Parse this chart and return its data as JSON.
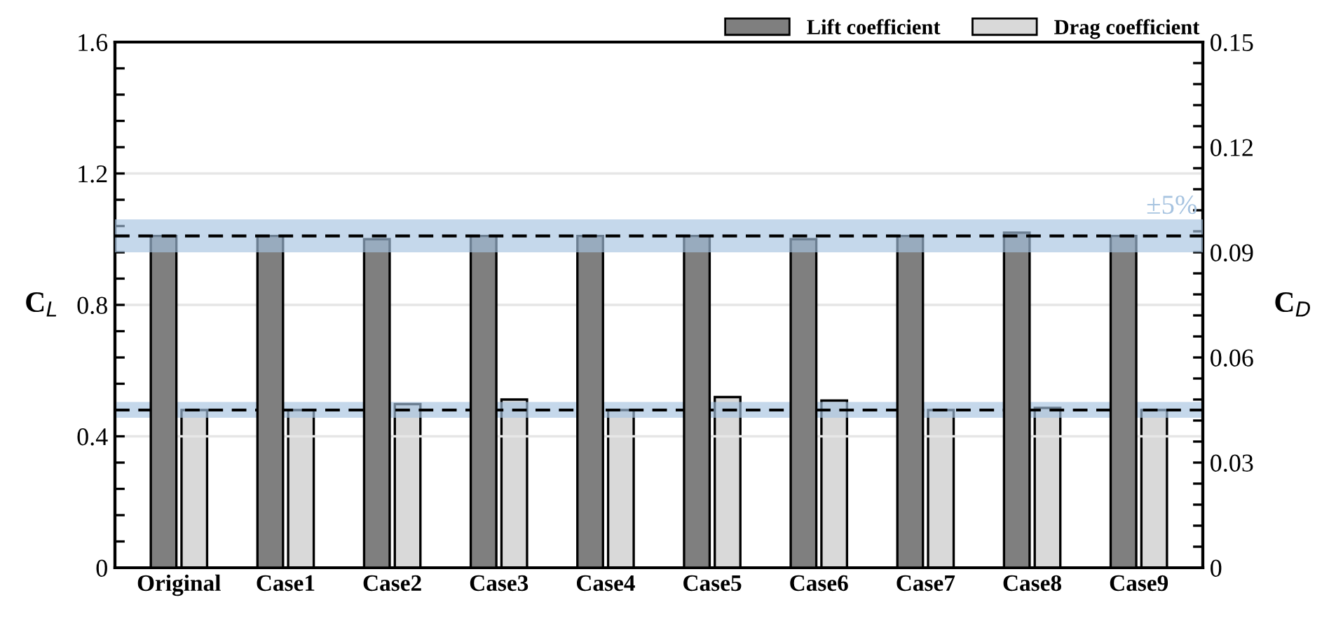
{
  "chart_data": {
    "type": "bar",
    "categories": [
      "Original",
      "Case1",
      "Case2",
      "Case3",
      "Case4",
      "Case5",
      "Case6",
      "Case7",
      "Case8",
      "Case9"
    ],
    "series": [
      {
        "name": "Lift coefficient",
        "color": "#7f7f7f",
        "values": [
          1.01,
          1.01,
          1.0,
          1.01,
          1.01,
          1.01,
          1.0,
          1.01,
          1.02,
          1.01
        ]
      },
      {
        "name": "Drag coefficient",
        "color": "#d9d9d9",
        "axis": "y2",
        "values": [
          0.045,
          0.045,
          0.0467,
          0.048,
          0.045,
          0.0487,
          0.0477,
          0.045,
          0.0456,
          0.045
        ]
      }
    ],
    "ylabel": "C$_{L}$",
    "y2label": "C$_{D}$",
    "ylim": [
      0,
      1.6
    ],
    "yticks": [
      0,
      {
        "value": 0.08,
        "label": null
      },
      {
        "value": 0.16,
        "label": null
      },
      {
        "value": 0.24,
        "label": null
      },
      {
        "value": 0.32,
        "label": null
      },
      0.4,
      {
        "value": 0.48,
        "label": null
      },
      {
        "value": 0.56,
        "label": null
      },
      {
        "value": 0.64,
        "label": null
      },
      {
        "value": 0.72,
        "label": null
      },
      0.8,
      {
        "value": 0.88,
        "label": null
      },
      {
        "value": 0.96,
        "label": null
      },
      {
        "value": 1.04,
        "label": null
      },
      {
        "value": 1.12,
        "label": null
      },
      1.2,
      {
        "value": 1.28,
        "label": null
      },
      {
        "value": 1.36,
        "label": null
      },
      {
        "value": 1.44,
        "label": null
      },
      {
        "value": 1.52,
        "label": null
      },
      1.6
    ],
    "y2lim": [
      0,
      0.15
    ],
    "y2ticks": [
      0,
      {
        "value": 0.006,
        "label": null
      },
      {
        "value": 0.012,
        "label": null
      },
      {
        "value": 0.018,
        "label": null
      },
      {
        "value": 0.024,
        "label": null
      },
      0.03,
      {
        "value": 0.036,
        "label": null
      },
      {
        "value": 0.042,
        "label": null
      },
      {
        "value": 0.048,
        "label": null
      },
      {
        "value": 0.054,
        "label": null
      },
      0.06,
      {
        "value": 0.066,
        "label": null
      },
      {
        "value": 0.072,
        "label": null
      },
      {
        "value": 0.078,
        "label": null
      },
      {
        "value": 0.084,
        "label": null
      },
      0.09,
      {
        "value": 0.096,
        "label": null
      },
      {
        "value": 0.102,
        "label": null
      },
      {
        "value": 0.108,
        "label": null
      },
      {
        "value": 0.114,
        "label": null
      },
      0.12,
      {
        "value": 0.126,
        "label": null
      },
      {
        "value": 0.132,
        "label": null
      },
      {
        "value": 0.138,
        "label": null
      },
      {
        "value": 0.144,
        "label": null
      },
      0.15
    ],
    "ref_lines": [
      {
        "axis": "y",
        "value": 1.01,
        "color": "#000000",
        "line_style": "dashed"
      },
      {
        "axis": "y2",
        "value": 0.045,
        "color": "#000000",
        "line_style": "dashed"
      }
    ],
    "bands": [
      {
        "axis": "y",
        "from": 0.96,
        "to": 1.06,
        "color": "#a6c3e0",
        "label": "±5%"
      },
      {
        "axis": "y2",
        "from": 0.0428,
        "to": 0.0473,
        "color": "#a6c3e0"
      }
    ],
    "grid": "y",
    "legend": "top right"
  }
}
